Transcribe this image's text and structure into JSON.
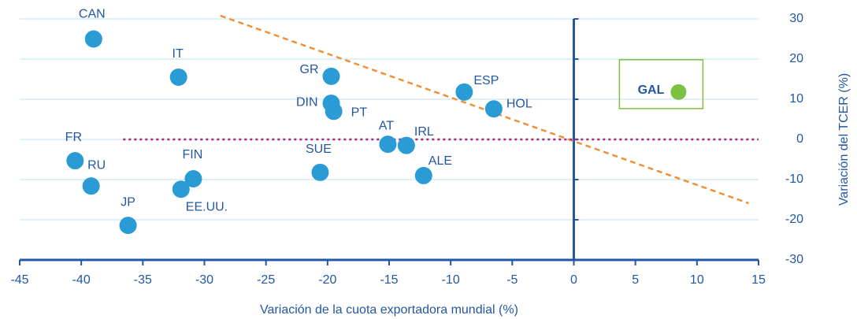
{
  "chart_data": {
    "type": "scatter",
    "xlabel": "Variación de la cuota exportadora mundial (%)",
    "ylabel": "Variación del TCER (%)",
    "xlim": [
      -45,
      15
    ],
    "ylim": [
      -30,
      30
    ],
    "xticks": [
      -45,
      -40,
      -35,
      -30,
      -25,
      -20,
      -15,
      -10,
      -5,
      0,
      5,
      10,
      15
    ],
    "yticks": [
      -30,
      -20,
      -10,
      0,
      10,
      20,
      30
    ],
    "grid": true,
    "series": [
      {
        "color": "#2b9bd6",
        "labels": [
          "CAN",
          "IT",
          "GR",
          "DIN",
          "PT",
          "ESP",
          "HOL",
          "AT",
          "IRL",
          "SUE",
          "ALE",
          "FR",
          "RU",
          "FIN",
          "EE.UU.",
          "JP"
        ],
        "x": [
          -39,
          -32.1,
          -19.7,
          -19.7,
          -19.5,
          -8.9,
          -6.5,
          -15.1,
          -13.6,
          -20.6,
          -12.2,
          -40.5,
          -39.2,
          -30.9,
          -31.9,
          -36.2
        ],
        "values": [
          25,
          15.5,
          15.7,
          9,
          7,
          11.8,
          7.6,
          -1.2,
          -1.5,
          -8.2,
          -9,
          -5.3,
          -11.6,
          -9.8,
          -12.4,
          -21.4
        ]
      },
      {
        "color": "#7dc143",
        "highlight": true,
        "labels": [
          "GAL"
        ],
        "x": [
          8.5
        ],
        "values": [
          11.8
        ]
      }
    ],
    "lines": [
      {
        "x": [
          -28.7,
          14.2
        ],
        "y": [
          30.8,
          -15.9
        ],
        "color": "#f0913a",
        "style": "dashed"
      },
      {
        "x": [
          -36.6,
          15
        ],
        "y": [
          0,
          0
        ],
        "color": "#a8276e",
        "style": "dotted"
      }
    ]
  }
}
